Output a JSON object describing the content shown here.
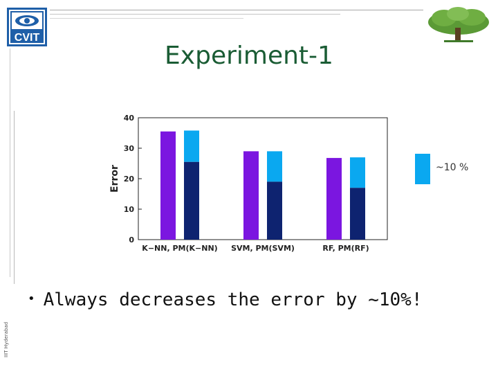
{
  "logo": {
    "text": "CVIT"
  },
  "title": "Experiment-1",
  "chart_data": {
    "type": "bar",
    "ylabel": "Error",
    "ylim": [
      0,
      40
    ],
    "yticks": [
      0,
      10,
      20,
      30,
      40
    ],
    "categories": [
      "K−NN, PM(K−NN)",
      "SVM, PM(SVM)",
      "RF, PM(RF)"
    ],
    "series": [
      {
        "values": [
          35.5,
          29.0,
          26.8
        ],
        "color": "#7b16e0"
      },
      {
        "values": [
          25.5,
          19.0,
          17.0
        ],
        "top_values": [
          35.8,
          29.0,
          27.0
        ],
        "color": "#0e2370",
        "top_color": "#0aa8f0"
      }
    ],
    "legend": {
      "label": "~10 %",
      "color": "#0aa8f0"
    }
  },
  "bullets": [
    "Always decreases the error by ~10%!"
  ],
  "footer": "IIIT Hyderabad",
  "colors": {
    "title": "#1a5c34",
    "logo": "#1f5fa8",
    "tree": "#4e8a2e"
  }
}
